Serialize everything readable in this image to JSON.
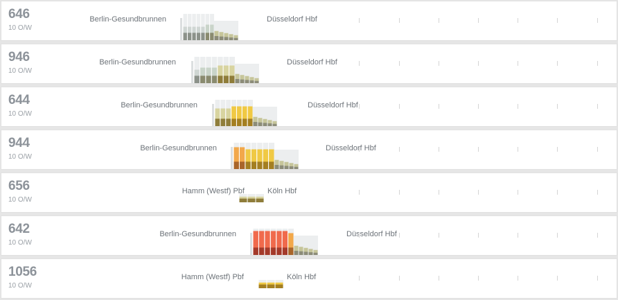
{
  "colors": {
    "grid": "#eceeef",
    "grid_line": "#d6d6d6",
    "occupancy": {
      "1": {
        "top": "#cfd6d3",
        "bottom": "#8c928a"
      },
      "2": {
        "top": "#c9d4c9",
        "bottom": "#8a8b6f"
      },
      "3": {
        "top": "#d8d4a0",
        "bottom": "#8f7d3a"
      },
      "4": {
        "top": "#f0c944",
        "bottom": "#a47f21"
      },
      "5": {
        "top": "#f2a84a",
        "bottom": "#a9652a"
      },
      "6": {
        "top": "#f06a4c",
        "bottom": "#a43a2a"
      }
    }
  },
  "trains": [
    {
      "number": "646",
      "direction": "10 O/W",
      "from": "Berlin-Gesundbrunnen",
      "to": "Düsseldorf Hbf",
      "occupancy": [
        1,
        1,
        1,
        1,
        1,
        2,
        2
      ],
      "tail": [
        0.35,
        0.3,
        0.25,
        0.2,
        0.15
      ]
    },
    {
      "number": "946",
      "direction": "10 O/W",
      "from": "Berlin-Gesundbrunnen",
      "to": "Düsseldorf Hbf",
      "occupancy": [
        1,
        2,
        2,
        2,
        3,
        3,
        3
      ],
      "tail": [
        0.35,
        0.3,
        0.25,
        0.2,
        0.15
      ]
    },
    {
      "number": "644",
      "direction": "10 O/W",
      "from": "Berlin-Gesundbrunnen",
      "to": "Düsseldorf Hbf",
      "occupancy": [
        3,
        3,
        3,
        4,
        4,
        4,
        4
      ],
      "tail": [
        0.45,
        0.38,
        0.3,
        0.22,
        0.15
      ]
    },
    {
      "number": "944",
      "direction": "10 O/W",
      "from": "Berlin-Gesundbrunnen",
      "to": "Düsseldorf Hbf",
      "occupancy": [
        5,
        5,
        4,
        4,
        4,
        4,
        4
      ],
      "tail": [
        0.4,
        0.32,
        0.25,
        0.2,
        0.15
      ]
    },
    {
      "number": "656",
      "direction": "10 O/W",
      "from": "Hamm (Westf) Pbf",
      "to": "Köln Hbf",
      "occupancy": [
        3,
        3,
        3
      ],
      "tail": []
    },
    {
      "number": "642",
      "direction": "10 O/W",
      "from": "Berlin-Gesundbrunnen",
      "to": "Düsseldorf Hbf",
      "occupancy": [
        6,
        6,
        6,
        6,
        6,
        6,
        5
      ],
      "tail": [
        0.4,
        0.32,
        0.25,
        0.2,
        0.15
      ]
    },
    {
      "number": "1056",
      "direction": "10 O/W",
      "from": "Hamm (Westf) Pbf",
      "to": "Köln Hbf",
      "occupancy": [
        4,
        4,
        4
      ],
      "tail": []
    }
  ]
}
